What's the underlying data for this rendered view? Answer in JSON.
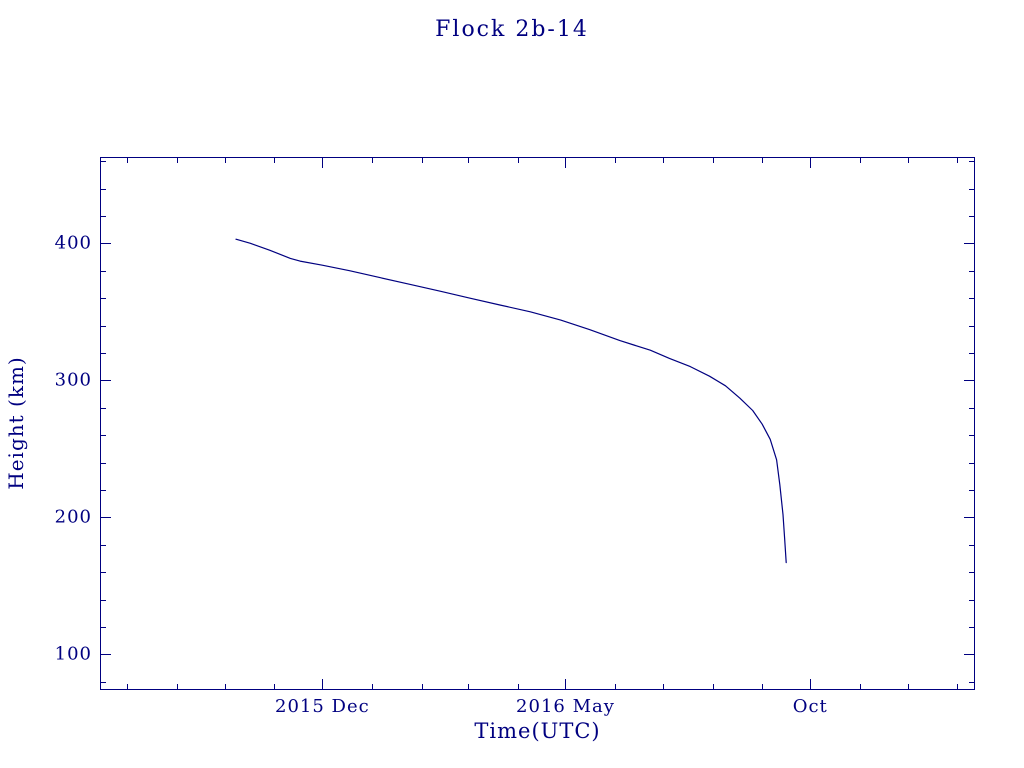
{
  "page": {
    "background": "#ffffff",
    "accent_color": "#000080"
  },
  "chart_data": {
    "type": "line",
    "title": "Flock 2b-14",
    "xlabel": "Time(UTC)",
    "ylabel": "Height (km)",
    "x_unit": "days since 2015-07-15",
    "xlim": [
      0,
      547
    ],
    "ylim": [
      74,
      463
    ],
    "grid": false,
    "legend": "none",
    "line_color": "#000080",
    "x_ticks": {
      "major": [
        {
          "value": 139,
          "label": "2015 Dec"
        },
        {
          "value": 291,
          "label": "2016 May"
        },
        {
          "value": 444,
          "label": "Oct"
        }
      ],
      "minor": [
        17,
        48,
        78,
        109,
        170,
        201,
        230,
        261,
        322,
        352,
        383,
        414,
        475,
        505,
        536
      ]
    },
    "y_ticks": {
      "major": [
        {
          "value": 100,
          "label": "100"
        },
        {
          "value": 200,
          "label": "200"
        },
        {
          "value": 300,
          "label": "300"
        },
        {
          "value": 400,
          "label": "400"
        }
      ],
      "minor": [
        80,
        120,
        140,
        160,
        180,
        220,
        240,
        260,
        280,
        320,
        340,
        360,
        380,
        420,
        440,
        460
      ]
    },
    "series": [
      {
        "name": "Flock 2b-14 orbital height",
        "points": [
          [
            85,
            403
          ],
          [
            94,
            400
          ],
          [
            106,
            395
          ],
          [
            119,
            389
          ],
          [
            125,
            387
          ],
          [
            139,
            384
          ],
          [
            156,
            380
          ],
          [
            175,
            375
          ],
          [
            194,
            370
          ],
          [
            213,
            365
          ],
          [
            231,
            360
          ],
          [
            250,
            355
          ],
          [
            269,
            350
          ],
          [
            288,
            344
          ],
          [
            306,
            337
          ],
          [
            325,
            329
          ],
          [
            344,
            322
          ],
          [
            356,
            316
          ],
          [
            369,
            310
          ],
          [
            381,
            303
          ],
          [
            391,
            296
          ],
          [
            400,
            287
          ],
          [
            408,
            278
          ],
          [
            414,
            268
          ],
          [
            419,
            257
          ],
          [
            423,
            242
          ],
          [
            425,
            224
          ],
          [
            427,
            202
          ],
          [
            428,
            185
          ],
          [
            429,
            167
          ]
        ]
      }
    ]
  }
}
